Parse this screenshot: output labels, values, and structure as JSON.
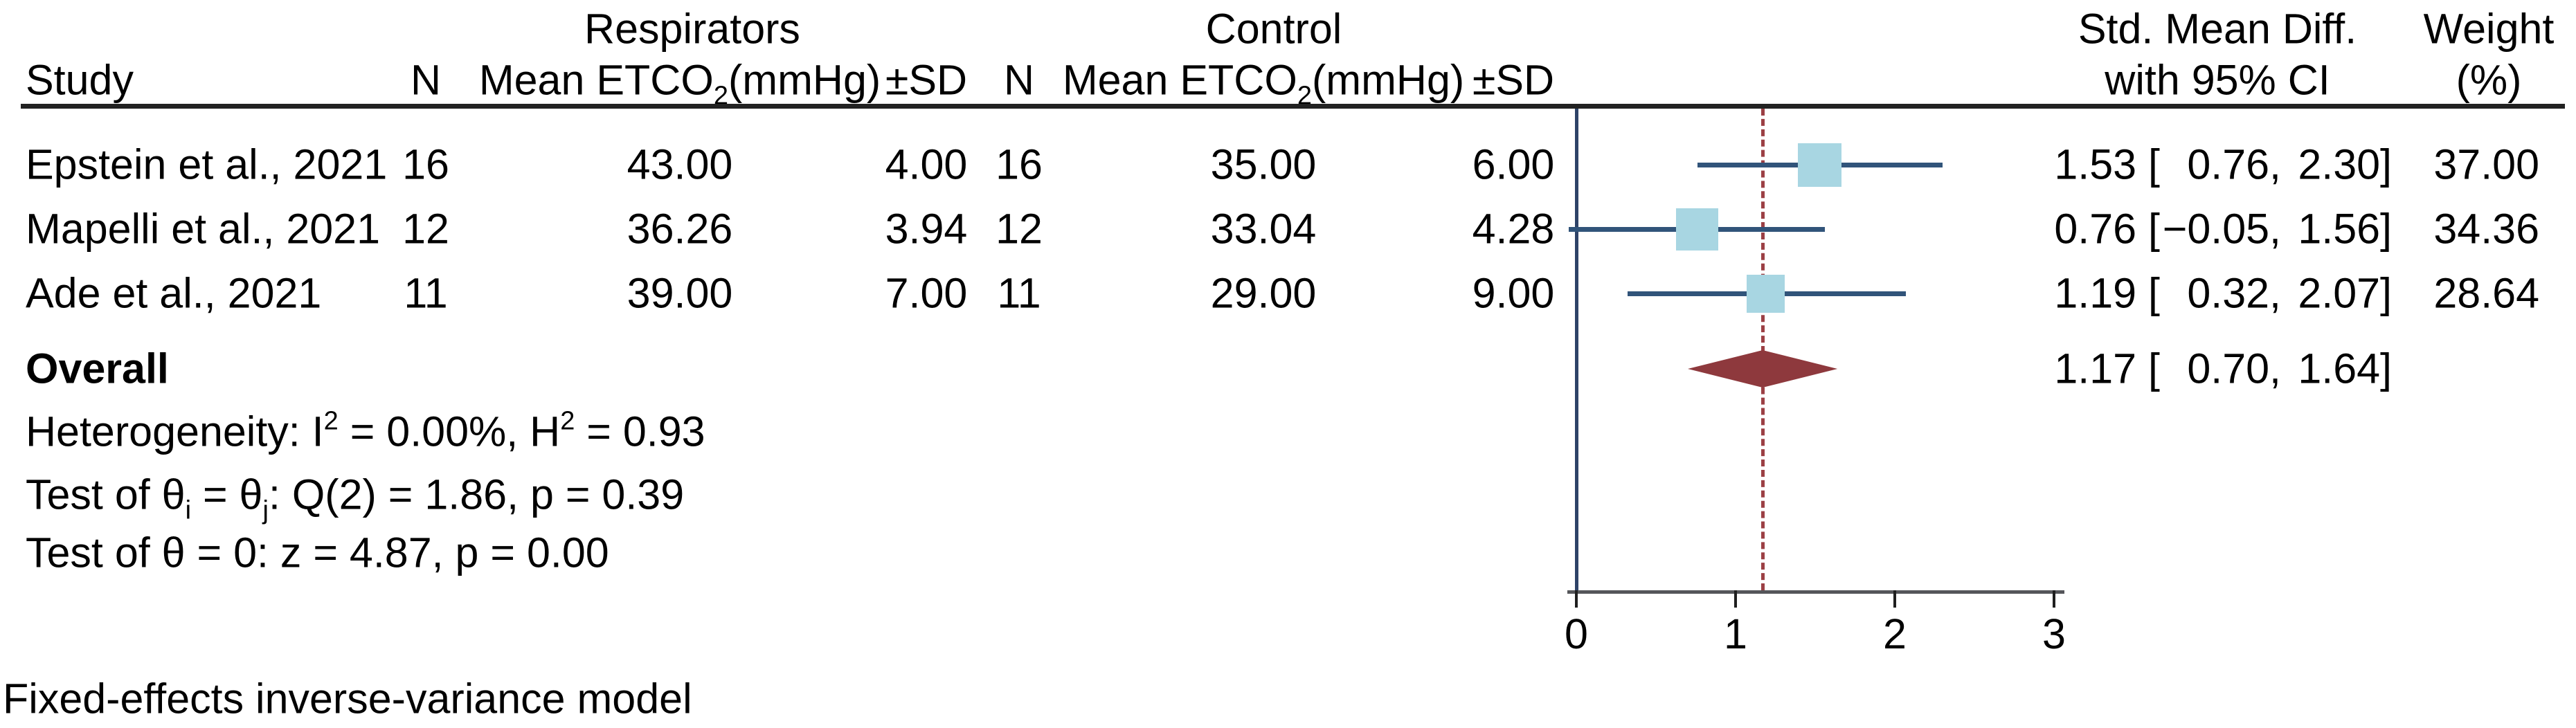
{
  "header": {
    "group1_title": "Respirators",
    "group2_title": "Control",
    "col_study": "Study",
    "col_n1": "N",
    "col_mean1": {
      "pre": "Mean ETCO",
      "sub": "2",
      "post": "(mmHg)"
    },
    "col_sd1": "±SD",
    "col_n2": "N",
    "col_mean2": {
      "pre": "Mean ETCO",
      "sub": "2",
      "post": "(mmHg)"
    },
    "col_sd2": "±SD",
    "effect_title_line1": "Std. Mean Diff.",
    "effect_title_line2": "with 95% CI",
    "weight_title_line1": "Weight",
    "weight_title_line2": "(%)"
  },
  "rows": [
    {
      "study": "Epstein et al., 2021",
      "n1": "16",
      "mean1": "43.00",
      "sd1": "4.00",
      "n2": "16",
      "mean2": "35.00",
      "sd2": "6.00",
      "ci_est": "1.53 [",
      "ci_lo": "0.76,",
      "ci_hi": "2.30]",
      "weight": "37.00"
    },
    {
      "study": "Mapelli et al., 2021",
      "n1": "12",
      "mean1": "36.26",
      "sd1": "3.94",
      "n2": "12",
      "mean2": "33.04",
      "sd2": "4.28",
      "ci_est": "0.76 [",
      "ci_lo": "−0.05,",
      "ci_hi": "1.56]",
      "weight": "34.36"
    },
    {
      "study": "Ade et al., 2021",
      "n1": "11",
      "mean1": "39.00",
      "sd1": "7.00",
      "n2": "11",
      "mean2": "29.00",
      "sd2": "9.00",
      "ci_est": "1.19 [",
      "ci_lo": "0.32,",
      "ci_hi": "2.07]",
      "weight": "28.64"
    }
  ],
  "overall": {
    "label": "Overall",
    "ci_est": "1.17 [",
    "ci_lo": "0.70,",
    "ci_hi": "1.64]"
  },
  "stats": {
    "heterogeneity": {
      "pre": "Heterogeneity: I",
      "sup1": "2",
      "mid": " = 0.00%, H",
      "sup2": "2",
      "post": " = 0.93"
    },
    "test_group": {
      "pre": "Test of θ",
      "sub1": "i",
      "mid": " = θ",
      "sub2": "j",
      "post": ": Q(2) = 1.86, p = 0.39"
    },
    "test_overall": "Test of θ = 0: z = 4.87, p = 0.00"
  },
  "footer": "Fixed-effects inverse-variance model",
  "colors": {
    "square": "#a8d6e2",
    "ci_line": "#31547a",
    "zero_line": "#2e4368",
    "diamond": "#8e393d",
    "dashed_line": "#9c4045",
    "axis": "#55565a",
    "text": "#000000"
  },
  "chart_data": {
    "type": "forest",
    "title": "Forest plot: Standardized Mean Difference of ETCO2 (mmHg), Respirators vs Control",
    "xlabel": "Std. Mean Diff.",
    "x_axis": {
      "ticks": [
        0,
        1,
        2,
        3
      ],
      "range": [
        0,
        3
      ],
      "zero_reference_line": 0,
      "dashed_reference_line_at": 1.17
    },
    "legend_position": "none",
    "grid": false,
    "studies": [
      {
        "name": "Epstein et al., 2021",
        "respirators": {
          "n": 16,
          "mean": 43.0,
          "sd": 4.0
        },
        "control": {
          "n": 16,
          "mean": 35.0,
          "sd": 6.0
        },
        "smd": 1.53,
        "ci_low": 0.76,
        "ci_high": 2.3,
        "weight_pct": 37.0
      },
      {
        "name": "Mapelli et al., 2021",
        "respirators": {
          "n": 12,
          "mean": 36.26,
          "sd": 3.94
        },
        "control": {
          "n": 12,
          "mean": 33.04,
          "sd": 4.28
        },
        "smd": 0.76,
        "ci_low": -0.05,
        "ci_high": 1.56,
        "weight_pct": 34.36
      },
      {
        "name": "Ade et al., 2021",
        "respirators": {
          "n": 11,
          "mean": 39.0,
          "sd": 7.0
        },
        "control": {
          "n": 11,
          "mean": 29.0,
          "sd": 9.0
        },
        "smd": 1.19,
        "ci_low": 0.32,
        "ci_high": 2.07,
        "weight_pct": 28.64
      }
    ],
    "overall": {
      "smd": 1.17,
      "ci_low": 0.7,
      "ci_high": 1.64
    },
    "heterogeneity": {
      "I2_pct": 0.0,
      "H2": 0.93,
      "Q_df": 2,
      "Q": 1.86,
      "p_Q": 0.39,
      "z": 4.87,
      "p_z": 0.0
    },
    "model": "Fixed-effects inverse-variance model"
  }
}
